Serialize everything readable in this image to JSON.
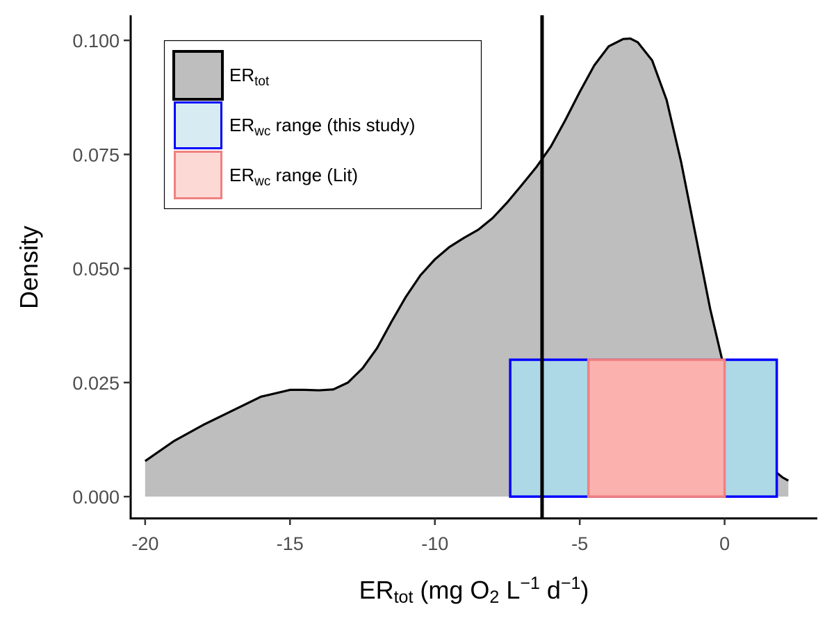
{
  "chart_data": {
    "type": "area",
    "xlabel": {
      "main": "ER",
      "sub": "tot",
      "unit_open": " (mg O",
      "o2_sub": "2",
      "l": " L",
      "l_sup": "−1",
      "d": " d",
      "d_sup": "−1",
      "unit_close": ")"
    },
    "ylabel": "Density",
    "xlim": [
      -20.5,
      3.2
    ],
    "ylim": [
      -0.0047,
      0.1055
    ],
    "x_ticks": [
      -20,
      -15,
      -10,
      -5,
      0
    ],
    "x_tick_labels": [
      "-20",
      "-15",
      "-10",
      "-5",
      "0"
    ],
    "y_ticks": [
      0.0,
      0.025,
      0.05,
      0.075,
      0.1
    ],
    "y_tick_labels": [
      "0.000",
      "0.025",
      "0.050",
      "0.075",
      "0.100"
    ],
    "grid": false,
    "density_series": {
      "name": "ER_tot",
      "fill": "#bebebe",
      "stroke": "#000000",
      "x": [
        -20.0,
        -19.0,
        -18.0,
        -17.0,
        -16.0,
        -15.0,
        -14.5,
        -14.0,
        -13.5,
        -13.0,
        -12.5,
        -12.0,
        -11.5,
        -11.0,
        -10.5,
        -10.0,
        -9.5,
        -9.0,
        -8.5,
        -8.0,
        -7.5,
        -7.0,
        -6.5,
        -6.0,
        -5.5,
        -5.0,
        -4.5,
        -4.0,
        -3.5,
        -3.25,
        -3.0,
        -2.5,
        -2.0,
        -1.5,
        -1.0,
        -0.5,
        0.0,
        0.5,
        1.0,
        1.5,
        2.0,
        2.2
      ],
      "y": [
        0.0078,
        0.0122,
        0.0157,
        0.0188,
        0.0219,
        0.0234,
        0.0234,
        0.0233,
        0.0235,
        0.025,
        0.0281,
        0.0325,
        0.0383,
        0.0438,
        0.0485,
        0.052,
        0.0547,
        0.0567,
        0.0585,
        0.0611,
        0.0645,
        0.0683,
        0.0722,
        0.0767,
        0.0825,
        0.0887,
        0.0945,
        0.0987,
        0.1003,
        0.1004,
        0.0996,
        0.0956,
        0.0869,
        0.0733,
        0.0573,
        0.0412,
        0.0277,
        0.0177,
        0.0109,
        0.0068,
        0.0042,
        0.0035
      ]
    },
    "vline": {
      "x": -6.3,
      "color": "#000000"
    },
    "ranges": [
      {
        "name": "ER_wc range (this study)",
        "xmin": -7.4,
        "xmax": 1.8,
        "ymin": 0.0,
        "ymax": 0.03,
        "fill": "#add8e6",
        "stroke": "#0000ff"
      },
      {
        "name": "ER_wc range (Lit)",
        "xmin": -4.7,
        "xmax": 0.0,
        "ymin": 0.0,
        "ymax": 0.03,
        "fill": "#fbb1ad",
        "stroke": "#f08080"
      }
    ],
    "legend": {
      "placement": "top-left",
      "items": [
        {
          "main": "ER",
          "sub": "tot",
          "rest": "",
          "swatch_fill": "#bebebe",
          "swatch_stroke": "#000000"
        },
        {
          "main": "ER",
          "sub": "wc",
          "rest": " range (this study)",
          "swatch_fill": "#d7ebf2",
          "swatch_stroke": "#0000ff"
        },
        {
          "main": "ER",
          "sub": "wc",
          "rest": " range (Lit)",
          "swatch_fill": "#fdd9d6",
          "swatch_stroke": "#f08080"
        }
      ]
    }
  }
}
